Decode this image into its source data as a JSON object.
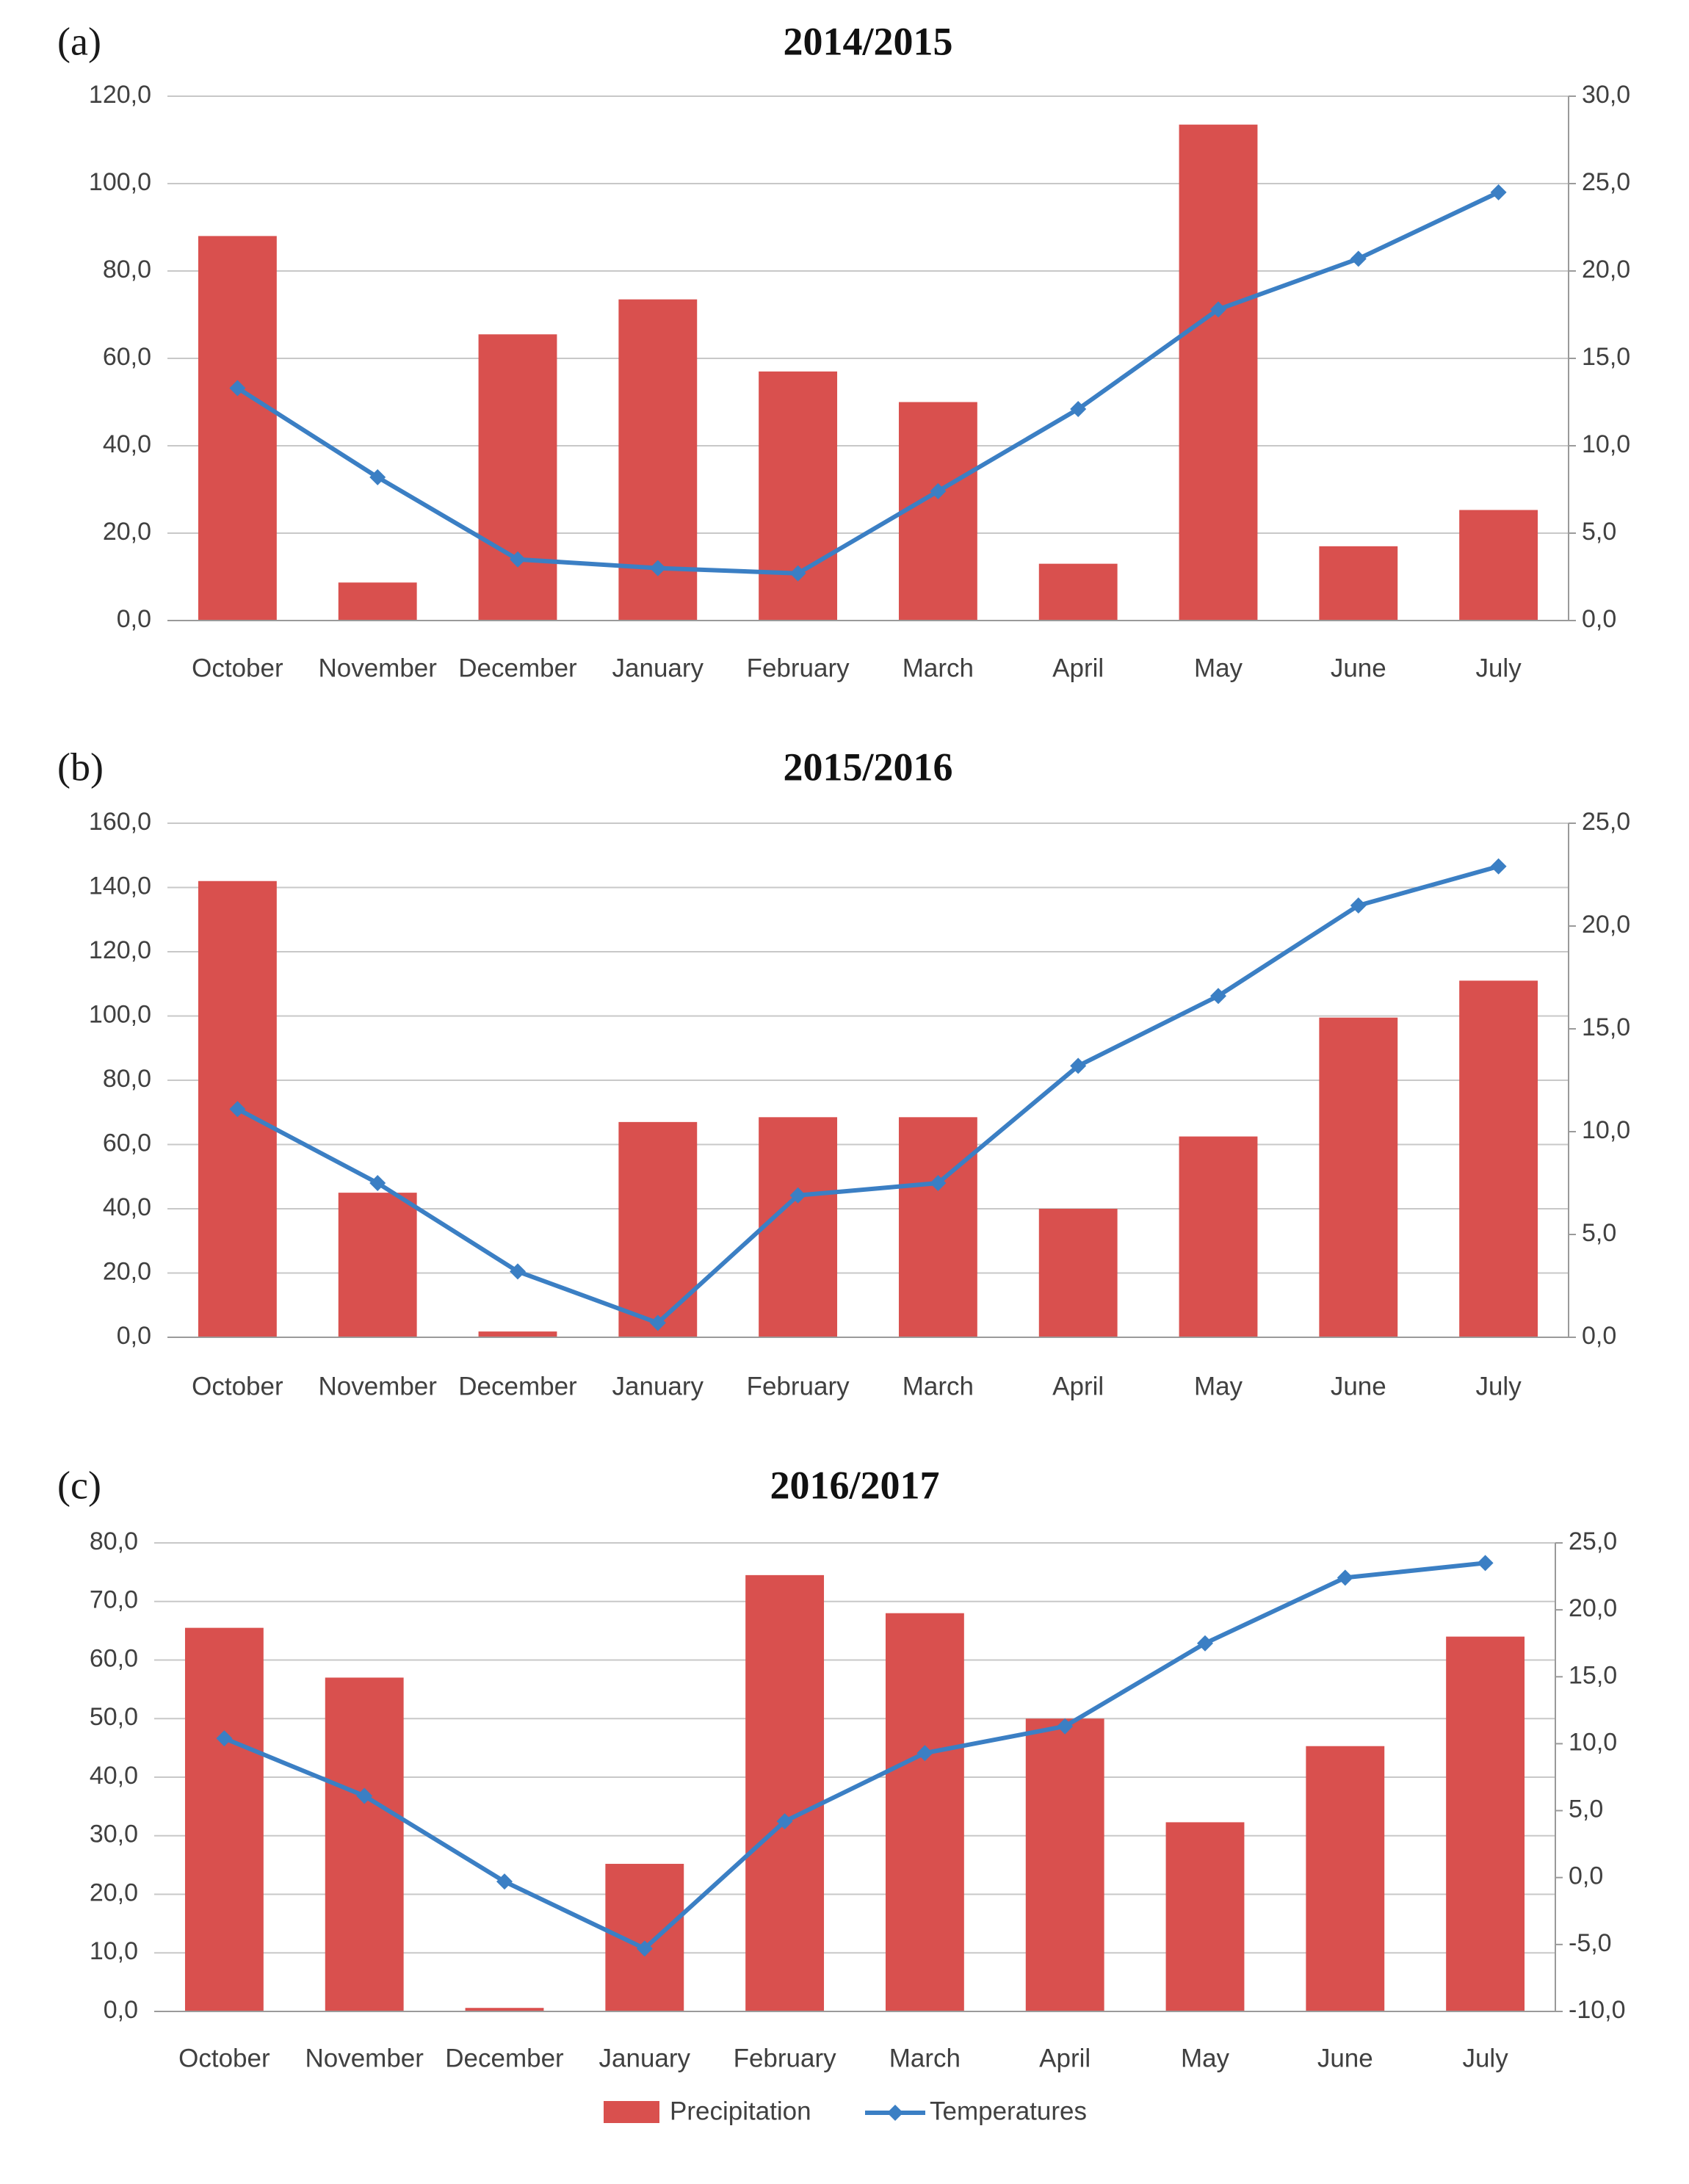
{
  "legend": {
    "precipitation_label": "Precipitation",
    "temperature_label": "Temperatures"
  },
  "colors": {
    "precipitation": "#d9504e",
    "temperature": "#3b7fc4",
    "gridline": "#c8c8c8",
    "text": "#404040"
  },
  "chart_data": [
    {
      "panel": "(a)",
      "title": "2014/2015",
      "type": "bar+line",
      "categories": [
        "October",
        "November",
        "December",
        "January",
        "February",
        "March",
        "April",
        "May",
        "June",
        "July"
      ],
      "series": [
        {
          "name": "Precipitation",
          "type": "bar",
          "axis": "left",
          "values": [
            88.0,
            8.7,
            65.5,
            73.5,
            57.0,
            50.0,
            13.0,
            113.5,
            17.0,
            25.3
          ]
        },
        {
          "name": "Temperatures",
          "type": "line",
          "axis": "right",
          "values": [
            13.3,
            8.2,
            3.5,
            3.0,
            2.7,
            7.4,
            12.1,
            17.8,
            20.7,
            24.5
          ]
        }
      ],
      "left_axis": {
        "min": 0,
        "max": 120,
        "step": 20,
        "ticks": [
          "0,0",
          "20,0",
          "40,0",
          "60,0",
          "80,0",
          "100,0",
          "120,0"
        ]
      },
      "right_axis": {
        "min": 0,
        "max": 30,
        "step": 5,
        "ticks": [
          "0,0",
          "5,0",
          "10,0",
          "15,0",
          "20,0",
          "25,0",
          "30,0"
        ]
      }
    },
    {
      "panel": "(b)",
      "title": "2015/2016",
      "type": "bar+line",
      "categories": [
        "October",
        "November",
        "December",
        "January",
        "February",
        "March",
        "April",
        "May",
        "June",
        "July"
      ],
      "series": [
        {
          "name": "Precipitation",
          "type": "bar",
          "axis": "left",
          "values": [
            142.0,
            45.0,
            1.8,
            67.0,
            68.5,
            68.5,
            40.0,
            62.5,
            99.5,
            111.0
          ]
        },
        {
          "name": "Temperatures",
          "type": "line",
          "axis": "right",
          "values": [
            11.1,
            7.5,
            3.2,
            0.7,
            6.9,
            7.5,
            13.2,
            16.6,
            21.0,
            22.9
          ]
        }
      ],
      "left_axis": {
        "min": 0,
        "max": 160,
        "step": 20,
        "ticks": [
          "0,0",
          "20,0",
          "40,0",
          "60,0",
          "80,0",
          "100,0",
          "120,0",
          "140,0",
          "160,0"
        ]
      },
      "right_axis": {
        "min": 0,
        "max": 25,
        "step": 5,
        "ticks": [
          "0,0",
          "5,0",
          "10,0",
          "15,0",
          "20,0",
          "25,0"
        ]
      }
    },
    {
      "panel": "(c)",
      "title": "2016/2017",
      "type": "bar+line",
      "categories": [
        "October",
        "November",
        "December",
        "January",
        "February",
        "March",
        "April",
        "May",
        "June",
        "July"
      ],
      "series": [
        {
          "name": "Precipitation",
          "type": "bar",
          "axis": "left",
          "values": [
            65.5,
            57.0,
            0.6,
            25.2,
            74.5,
            68.0,
            50.0,
            32.3,
            45.3,
            64.0
          ]
        },
        {
          "name": "Temperatures",
          "type": "line",
          "axis": "right",
          "values": [
            10.4,
            6.1,
            -0.3,
            -5.3,
            4.2,
            9.3,
            11.3,
            17.5,
            22.4,
            23.5
          ]
        }
      ],
      "left_axis": {
        "min": 0,
        "max": 80,
        "step": 10,
        "ticks": [
          "0,0",
          "10,0",
          "20,0",
          "30,0",
          "40,0",
          "50,0",
          "60,0",
          "70,0",
          "80,0"
        ]
      },
      "right_axis": {
        "min": -10,
        "max": 25,
        "step": 5,
        "ticks": [
          "-10,0",
          "-5,0",
          "0,0",
          "5,0",
          "10,0",
          "15,0",
          "20,0",
          "25,0"
        ]
      }
    }
  ]
}
